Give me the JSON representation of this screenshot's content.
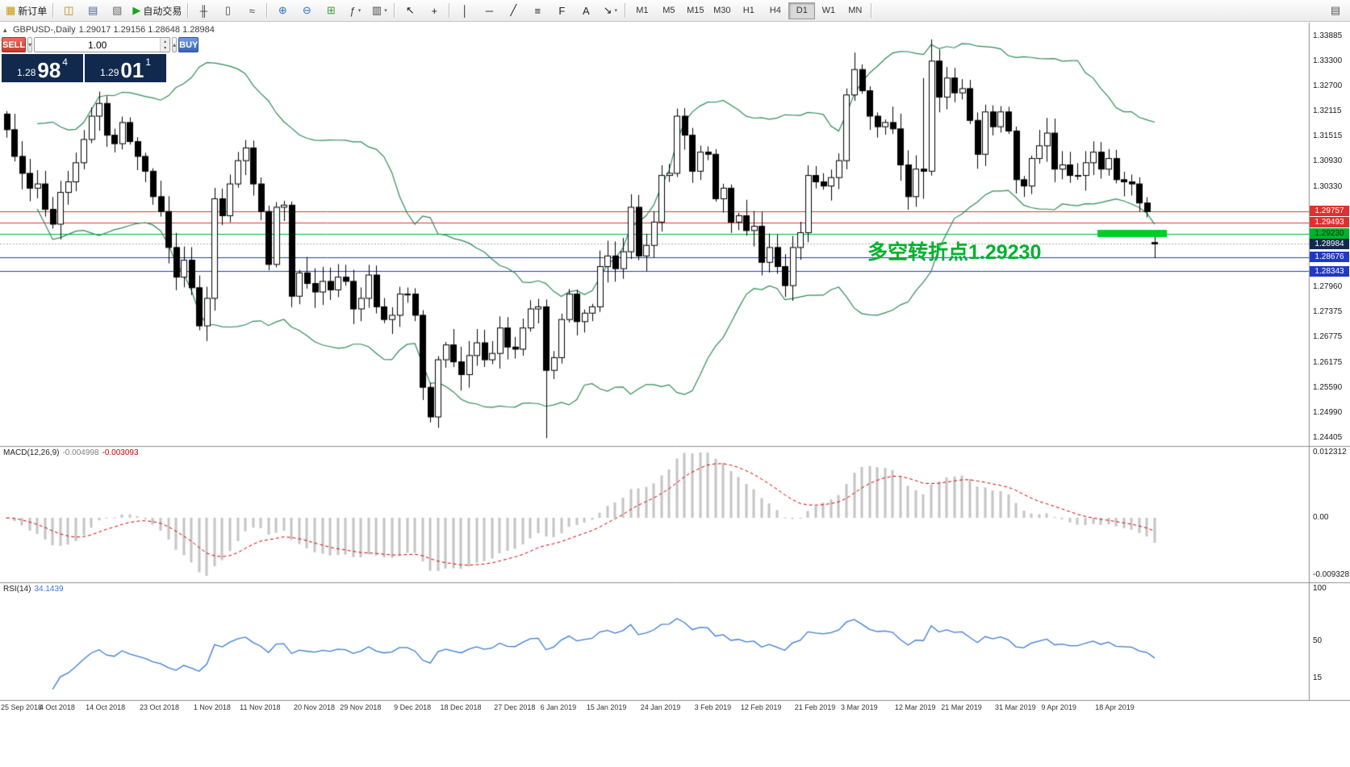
{
  "colors": {
    "annotation_green": "#00b22d",
    "band_green": "#2e8b57",
    "macd_hist": "#c4c4c4",
    "macd_signal": "#d40000",
    "rsi_line": "#3b7bd4",
    "level_red": "#e03030",
    "level_blue": "#2038c8",
    "level_green": "#00b22d",
    "bid_tag_bg": "#13294f",
    "green_bar": "#00cc22"
  },
  "toolbar": {
    "groups": [
      {
        "items": [
          {
            "name": "new-order",
            "glyph": "▦",
            "color": "#c99700",
            "label": "新订单"
          }
        ]
      },
      {
        "items": [
          {
            "name": "market-watch",
            "glyph": "◫",
            "color": "#b8860b"
          },
          {
            "name": "data-window",
            "glyph": "▤",
            "color": "#46648f"
          },
          {
            "name": "navigator",
            "glyph": "▧",
            "color": "#6a6a6a"
          },
          {
            "name": "autotrading",
            "glyph": "▶",
            "color": "#21a121",
            "label": "自动交易"
          }
        ]
      },
      {
        "items": [
          {
            "name": "bar-chart",
            "glyph": "╫",
            "color": "#444444"
          },
          {
            "name": "candlestick-chart",
            "glyph": "▯",
            "color": "#444444"
          },
          {
            "name": "line-chart",
            "glyph": "≈",
            "color": "#444444"
          }
        ]
      },
      {
        "items": [
          {
            "name": "zoom-in",
            "glyph": "⊕",
            "color": "#2a6fbf"
          },
          {
            "name": "zoom-out",
            "glyph": "⊖",
            "color": "#2a6fbf"
          },
          {
            "name": "grid",
            "glyph": "⊞",
            "color": "#3a9d3a"
          },
          {
            "name": "indicators",
            "glyph": "ƒ",
            "color": "#444444",
            "arrow": true
          },
          {
            "name": "templates",
            "glyph": "▥",
            "color": "#444444",
            "arrow": true
          }
        ]
      },
      {
        "items": [
          {
            "name": "cursor",
            "glyph": "↖",
            "color": "#222222"
          },
          {
            "name": "crosshair",
            "glyph": "+",
            "color": "#222222"
          }
        ]
      },
      {
        "items": [
          {
            "name": "vertical-line",
            "glyph": "│",
            "color": "#222222"
          },
          {
            "name": "horizontal-line",
            "glyph": "─",
            "color": "#222222"
          },
          {
            "name": "trendline",
            "glyph": "╱",
            "color": "#222222"
          },
          {
            "name": "equidistant-channel",
            "glyph": "≡",
            "color": "#222222"
          },
          {
            "name": "fibonacci",
            "glyph": "F",
            "color": "#222222"
          },
          {
            "name": "text",
            "glyph": "A",
            "color": "#222222"
          },
          {
            "name": "arrows",
            "glyph": "↘",
            "color": "#222222",
            "arrow": true
          }
        ]
      }
    ],
    "timeframes": [
      "M1",
      "M5",
      "M15",
      "M30",
      "H1",
      "H4",
      "D1",
      "W1",
      "MN"
    ],
    "active_timeframe": "D1",
    "right_items": [
      {
        "name": "window-list",
        "glyph": "▤",
        "color": "#555555"
      }
    ]
  },
  "chart": {
    "toggle_glyph": "▴",
    "header_symbol": "GBPUSD-,Daily",
    "header_ohlc": "1.29017 1.29156 1.28648 1.28984",
    "annotation": {
      "text": "多空转折点1.29230"
    }
  },
  "quote_panel": {
    "sell_label": "SELL",
    "buy_label": "BUY",
    "volume": "1.00",
    "dec_glyph": "▾",
    "inc_glyph": "▴",
    "bid": {
      "prefix": "1.28",
      "big": "98",
      "sup": "4"
    },
    "ask": {
      "prefix": "1.29",
      "big": "01",
      "sup": "1"
    }
  },
  "chart_data": {
    "type": "candlestick",
    "symbol": "GBPUSD",
    "timeframe": "Daily",
    "closes": [
      1.3168,
      1.3105,
      1.3065,
      1.303,
      1.304,
      1.298,
      1.2945,
      1.302,
      1.3045,
      1.309,
      1.3145,
      1.32,
      1.323,
      1.3155,
      1.3135,
      1.3185,
      1.314,
      1.3105,
      1.307,
      1.301,
      1.2975,
      1.289,
      1.282,
      1.286,
      1.2795,
      1.2705,
      1.277,
      1.3005,
      1.2965,
      1.304,
      1.3095,
      1.3125,
      1.304,
      1.2975,
      1.285,
      1.2985,
      1.299,
      1.2775,
      1.283,
      1.2805,
      1.2785,
      1.281,
      1.279,
      1.282,
      1.281,
      1.2745,
      1.277,
      1.2825,
      1.275,
      1.272,
      1.273,
      1.278,
      1.278,
      1.273,
      1.256,
      1.249,
      1.2625,
      1.266,
      1.262,
      1.259,
      1.2635,
      1.2665,
      1.2625,
      1.264,
      1.27,
      1.2655,
      1.265,
      1.27,
      1.2745,
      1.275,
      1.26,
      1.263,
      1.272,
      1.278,
      1.2715,
      1.2735,
      1.275,
      1.2845,
      1.287,
      1.284,
      1.288,
      1.2985,
      1.287,
      1.2895,
      1.295,
      1.306,
      1.3065,
      1.32,
      1.3155,
      1.307,
      1.3115,
      1.311,
      1.3005,
      1.303,
      1.295,
      1.2965,
      1.293,
      1.294,
      1.2855,
      1.289,
      1.2845,
      1.28,
      1.289,
      1.2925,
      1.306,
      1.3045,
      1.3035,
      1.3055,
      1.3095,
      1.325,
      1.331,
      1.326,
      1.32,
      1.3175,
      1.3185,
      1.317,
      1.3085,
      1.301,
      1.3075,
      1.307,
      1.333,
      1.3245,
      1.329,
      1.3255,
      1.3265,
      1.319,
      1.311,
      1.321,
      1.3175,
      1.321,
      1.3165,
      1.305,
      1.3035,
      1.31,
      1.313,
      1.316,
      1.3075,
      1.3085,
      1.306,
      1.306,
      1.309,
      1.3115,
      1.3075,
      1.31,
      1.305,
      1.3045,
      1.304,
      1.2995,
      1.2975,
      1.28984
    ],
    "overrides": {
      "0": {
        "o": 1.3205
      },
      "12": {
        "h": 1.3258
      },
      "54": {
        "l": 1.253
      },
      "55": {
        "l": 1.2477
      },
      "70": {
        "l": 1.244
      },
      "87": {
        "h": 1.3218
      },
      "101": {
        "l": 1.2773
      },
      "110": {
        "h": 1.335
      },
      "119": {
        "h": 1.329,
        "l": 1.3005
      },
      "120": {
        "h": 1.3381
      },
      "149": {
        "o": 1.29017,
        "h": 1.29156,
        "l": 1.28648
      }
    },
    "price_ticks": [
      "1.33885",
      "1.33300",
      "1.32700",
      "1.32115",
      "1.31515",
      "1.30930",
      "1.30330",
      "1.27960",
      "1.27375",
      "1.26775",
      "1.26175",
      "1.25590",
      "1.24990",
      "1.24405"
    ],
    "levels": [
      {
        "price": 1.29757,
        "label": "1.29757",
        "color": "#e03030",
        "style": "solid"
      },
      {
        "price": 1.29493,
        "label": "1.29493",
        "color": "#e03030",
        "style": "solid"
      },
      {
        "price": 1.2923,
        "label": "1.29230",
        "color": "#00b22d",
        "style": "solid"
      },
      {
        "price": 1.28984,
        "label": "1.28984",
        "color": "#13294f",
        "style": "bid"
      },
      {
        "price": 1.28676,
        "label": "1.28676",
        "color": "#2038c8",
        "style": "solid"
      },
      {
        "price": 1.28343,
        "label": "1.28343",
        "color": "#2038c8",
        "style": "solid"
      }
    ],
    "green_bar": {
      "price": 1.2923,
      "from_index": 142,
      "to_index": 151,
      "color": "#00cc22",
      "thickness": 9
    },
    "bollinger": {
      "period": 20,
      "deviation": 2
    },
    "dates": [
      {
        "i": 0,
        "label": "25 Sep 2018"
      },
      {
        "i": 7,
        "label": "4 Oct 2018"
      },
      {
        "i": 13,
        "label": "14 Oct 2018"
      },
      {
        "i": 20,
        "label": "23 Oct 2018"
      },
      {
        "i": 27,
        "label": "1 Nov 2018"
      },
      {
        "i": 33,
        "label": "11 Nov 2018"
      },
      {
        "i": 40,
        "label": "20 Nov 2018"
      },
      {
        "i": 46,
        "label": "29 Nov 2018"
      },
      {
        "i": 53,
        "label": "9 Dec 2018"
      },
      {
        "i": 59,
        "label": "18 Dec 2018"
      },
      {
        "i": 66,
        "label": "27 Dec 2018"
      },
      {
        "i": 72,
        "label": "6 Jan 2019"
      },
      {
        "i": 78,
        "label": "15 Jan 2019"
      },
      {
        "i": 85,
        "label": "24 Jan 2019"
      },
      {
        "i": 92,
        "label": "3 Feb 2019"
      },
      {
        "i": 98,
        "label": "12 Feb 2019"
      },
      {
        "i": 105,
        "label": "21 Feb 2019"
      },
      {
        "i": 111,
        "label": "3 Mar 2019"
      },
      {
        "i": 118,
        "label": "12 Mar 2019"
      },
      {
        "i": 124,
        "label": "21 Mar 2019"
      },
      {
        "i": 131,
        "label": "31 Mar 2019"
      },
      {
        "i": 137,
        "label": "9 Apr 2019"
      },
      {
        "i": 144,
        "label": "18 Apr 2019"
      }
    ],
    "macd": {
      "label": "MACD(12,26,9)",
      "main_value": "-0.004998",
      "signal_value": "-0.003093",
      "ticks": [
        "0.012312",
        "0.00",
        "-0.009328"
      ]
    },
    "rsi": {
      "label": "RSI(14)",
      "value": "34.1439",
      "ticks": [
        "100",
        "50",
        "15"
      ]
    }
  }
}
